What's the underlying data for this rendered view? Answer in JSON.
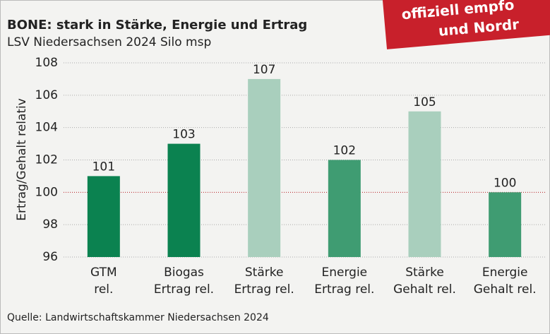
{
  "chart_data": {
    "type": "bar",
    "title": "BONE: stark in Stärke, Energie und Ertrag",
    "subtitle": "LSV Niedersachsen 2024 Silo msp",
    "ylabel": "Ertrag/Gehalt relativ",
    "source": "Quelle: Landwirtschaftskammer Niedersachsen 2024",
    "banner": [
      "offiziell empfo",
      "und Nordr"
    ],
    "categories": [
      [
        "GTM",
        "rel."
      ],
      [
        "Biogas",
        "Ertrag rel."
      ],
      [
        "Stärke",
        "Ertrag rel."
      ],
      [
        "Energie",
        "Ertrag rel."
      ],
      [
        "Stärke",
        "Gehalt rel."
      ],
      [
        "Energie",
        "Gehalt rel."
      ]
    ],
    "values": [
      101,
      103,
      107,
      102,
      105,
      100
    ],
    "colors": [
      "#0b8250",
      "#0b8250",
      "#a9cfbd",
      "#3f9c72",
      "#a9cfbd",
      "#3f9c72"
    ],
    "ylim": [
      96,
      108
    ],
    "yticks": [
      96,
      98,
      100,
      102,
      104,
      106,
      108
    ],
    "grid": true,
    "reference_line": 100,
    "reference_color": "#c0282d"
  }
}
